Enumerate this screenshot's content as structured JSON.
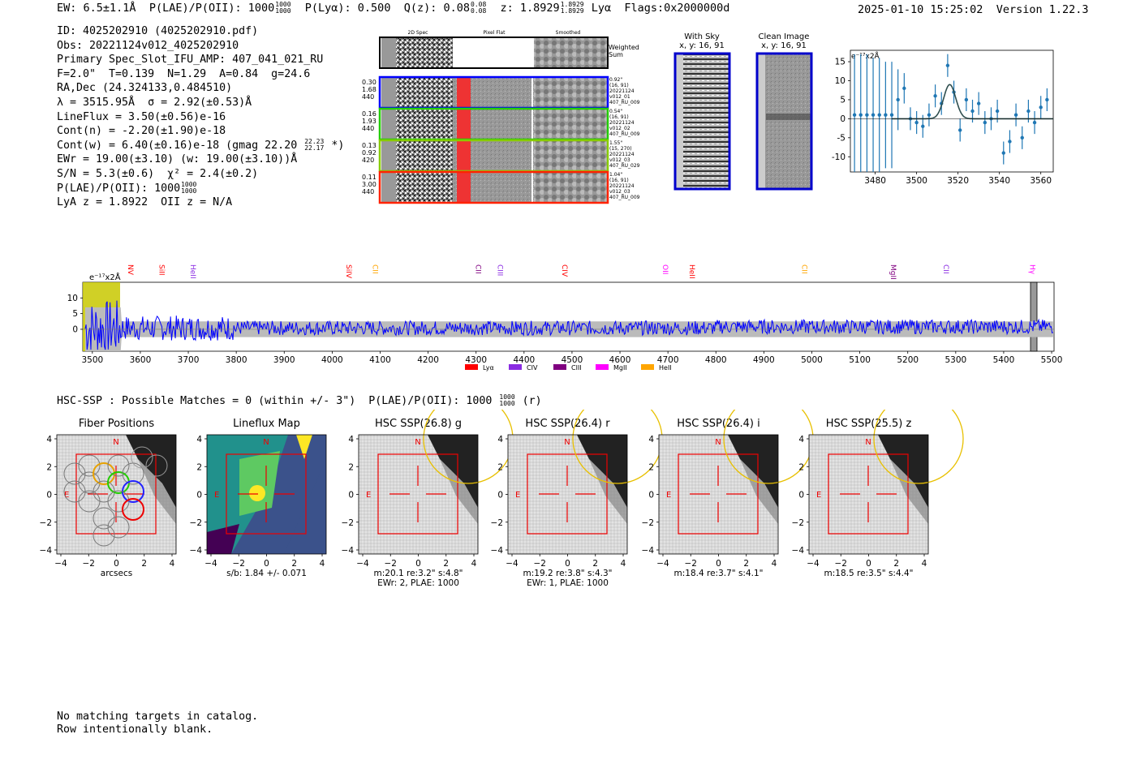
{
  "header": {
    "ew_label": "EW: 6.5±1.1Å",
    "plae_label": "P(LAE)/P(OII): 1000",
    "plae_frac": [
      "1000",
      "1000"
    ],
    "plya_label": "P(Lyα): 0.500",
    "qz_label": "Q(z): 0.08",
    "qz_frac": [
      "0.08",
      "0.08"
    ],
    "z_label": "z: 1.8929",
    "z_frac": [
      "1.8929",
      "1.8929"
    ],
    "z_line": "Lyα",
    "flags": "Flags:0x2000000d",
    "datetime": "2025-01-10 15:25:02",
    "version": "Version 1.22.3"
  },
  "info": {
    "id": "ID: 4025202910 (4025202910.pdf)",
    "obs": "Obs: 20221124v012_4025202910",
    "primary": "Primary Spec_Slot_IFU_AMP: 407_041_021_RU",
    "params": "F=2.0\"  T=0.139  N=1.29  A=0.84  g=24.6",
    "radec": "RA,Dec (24.324133,0.484510)",
    "lambda_sigma": "λ = 3515.95Å  σ = 2.92(±0.53)Å",
    "lineflux": "LineFlux = 3.50(±0.56)e-16",
    "cont_n": "Cont(n) = -2.20(±1.90)e-18",
    "cont_w": "Cont(w) = 6.40(±0.16)e-18 (gmag 22.20",
    "cont_w_frac": [
      "22.23",
      "22.17"
    ],
    "cont_w_end": "*)",
    "ewr": "EWr = 19.00(±3.10) (w: 19.00(±3.10))Å",
    "sn_chi": "S/N = 5.3(±0.6)  χ² = 2.4(±0.2)",
    "plae": "P(LAE)/P(OII): 1000",
    "plae_frac": [
      "1000",
      "1000"
    ],
    "lya_z": "LyA z = 1.8922  OII z = N/A"
  },
  "cutouts": {
    "col_headers": [
      "2D Spec",
      "Pixel Flat",
      "Smoothed"
    ],
    "weighted_sum": [
      "Weighted",
      "Sum"
    ],
    "rows": [
      {
        "color": "#0000ff",
        "left": [
          "0.30",
          "1.68",
          "440"
        ],
        "right": [
          "0.92\"",
          "(16, 91)",
          "20221124",
          "v012_01",
          "407_RU_009"
        ]
      },
      {
        "color": "#22cc00",
        "left": [
          "0.16",
          "1.93",
          "440"
        ],
        "right": [
          "0.54\"",
          "(16, 91)",
          "20221124",
          "v012_02",
          "407_RU_009"
        ]
      },
      {
        "color": "#88cc00",
        "left": [
          "0.13",
          "0.92",
          "420"
        ],
        "right": [
          "1.55\"",
          "(15, 270)",
          "20221124",
          "v012_03",
          "407_RU_029"
        ]
      },
      {
        "color": "#ff2200",
        "left": [
          "0.11",
          "3.00",
          "440"
        ],
        "right": [
          "1.04\"",
          "(16, 91)",
          "20221124",
          "v012_03",
          "407_RU_009"
        ]
      }
    ],
    "with_sky": {
      "title": "With Sky",
      "coords": "x, y: 16, 91"
    },
    "clean_image": {
      "title": "Clean Image",
      "coords": "x, y: 16, 91"
    }
  },
  "chart_data": [
    {
      "type": "scatter",
      "name": "line-fit",
      "ylabel": "e⁻¹⁷x2Å",
      "xlim": [
        3468,
        3566
      ],
      "ylim": [
        -14,
        18
      ],
      "x_ticks": [
        "3480",
        "3500",
        "3520",
        "3540",
        "3560"
      ],
      "y_ticks": [
        "15",
        "10",
        "5",
        "0",
        "-5",
        "-10"
      ],
      "x": [
        3470,
        3473,
        3476,
        3479,
        3482,
        3485,
        3488,
        3491,
        3494,
        3497,
        3500,
        3503,
        3506,
        3509,
        3512,
        3515,
        3518,
        3521,
        3524,
        3527,
        3530,
        3533,
        3536,
        3539,
        3542,
        3545,
        3548,
        3551,
        3554,
        3557,
        3560,
        3563
      ],
      "y": [
        1,
        1,
        1,
        1,
        1,
        1,
        1,
        5,
        8,
        0,
        -1,
        -2,
        1,
        6,
        4,
        14,
        7,
        -3,
        5,
        2,
        4,
        -1,
        0,
        2,
        -9,
        -6,
        1,
        -5,
        2,
        -1,
        3,
        5
      ],
      "err": [
        16,
        16,
        16,
        15,
        15,
        14,
        14,
        8,
        4,
        3,
        3,
        3,
        3,
        3,
        3,
        3,
        3,
        3,
        3,
        3,
        3,
        3,
        3,
        3,
        3,
        3,
        3,
        3,
        3,
        3,
        3,
        3
      ],
      "fit_center": 3516,
      "fit_amp": 9,
      "fit_sigma": 2.9
    },
    {
      "type": "line",
      "name": "full-spectrum",
      "ylabel": "e⁻¹⁷x2Å",
      "xlim": [
        3480,
        5505
      ],
      "ylim": [
        -7,
        15
      ],
      "x_ticks": [
        "3500",
        "3600",
        "3700",
        "3800",
        "3900",
        "4000",
        "4100",
        "4200",
        "4300",
        "4400",
        "4500",
        "4600",
        "4700",
        "4800",
        "4900",
        "5000",
        "5100",
        "5200",
        "5300",
        "5400",
        "5500"
      ],
      "y_ticks": [
        "10",
        "5",
        "0"
      ],
      "line_markers": [
        {
          "label": "NV",
          "x": 3575,
          "color": "#ff0000"
        },
        {
          "label": "SiII",
          "x": 3640,
          "color": "#ff0000"
        },
        {
          "label": "HeII",
          "x": 3705,
          "color": "#8a2be2"
        },
        {
          "label": "SiIV",
          "x": 4030,
          "color": "#ff0000"
        },
        {
          "label": "CII",
          "x": 4085,
          "color": "#ffa500"
        },
        {
          "label": "CII",
          "x": 4300,
          "color": "#800080"
        },
        {
          "label": "CIII",
          "x": 4345,
          "color": "#8a2be2"
        },
        {
          "label": "CIV",
          "x": 4480,
          "color": "#ff0000"
        },
        {
          "label": "OII",
          "x": 4690,
          "color": "#ff00ff"
        },
        {
          "label": "HeII",
          "x": 4745,
          "color": "#ff0000"
        },
        {
          "label": "CII",
          "x": 4980,
          "color": "#ffa500"
        },
        {
          "label": "MgII",
          "x": 5165,
          "color": "#800080"
        },
        {
          "label": "CII",
          "x": 5275,
          "color": "#8a2be2"
        },
        {
          "label": "Hγ",
          "x": 5455,
          "color": "#ff00ff"
        }
      ],
      "legend": [
        {
          "label": "Lyα",
          "color": "#ff0000"
        },
        {
          "label": "CIV",
          "color": "#8a2be2"
        },
        {
          "label": "CIII",
          "color": "#800080"
        },
        {
          "label": "MgII",
          "color": "#ff00ff"
        },
        {
          "label": "HeII",
          "color": "#ffa500"
        }
      ]
    }
  ],
  "hsc": {
    "header": "HSC-SSP : Possible Matches = 0 (within +/- 3\")  P(LAE)/P(OII): 1000",
    "header_frac": [
      "1000",
      "1000"
    ],
    "header_end": "(r)",
    "panels": [
      {
        "title": "Fiber Positions",
        "caption1": "arcsecs",
        "caption2": ""
      },
      {
        "title": "Lineflux Map",
        "caption1": "s/b: 1.84 +/- 0.071",
        "caption2": ""
      },
      {
        "title": "HSC SSP(26.8) g",
        "caption1": "m:20.1  re:3.2\"  s:4.8\"",
        "caption2": "EWr: 2, PLAE: 1000"
      },
      {
        "title": "HSC SSP(26.4) r",
        "caption1": "m:19.2  re:3.8\"  s:4.3\"",
        "caption2": "EWr: 1, PLAE: 1000"
      },
      {
        "title": "HSC SSP(26.4) i",
        "caption1": "m:18.4  re:3.7\"  s:4.1\"",
        "caption2": ""
      },
      {
        "title": "HSC SSP(25.5) z",
        "caption1": "m:18.5  re:3.5\"  s:4.4\"",
        "caption2": ""
      }
    ],
    "axis_ticks": [
      "4",
      "2",
      "0",
      "−2",
      "−4"
    ],
    "x_ticks": [
      "−4",
      "−2",
      "0",
      "2",
      "4"
    ],
    "north": "N",
    "east": "E"
  },
  "footer": {
    "line1": "No matching targets in catalog.",
    "line2": "Row intentionally blank."
  }
}
